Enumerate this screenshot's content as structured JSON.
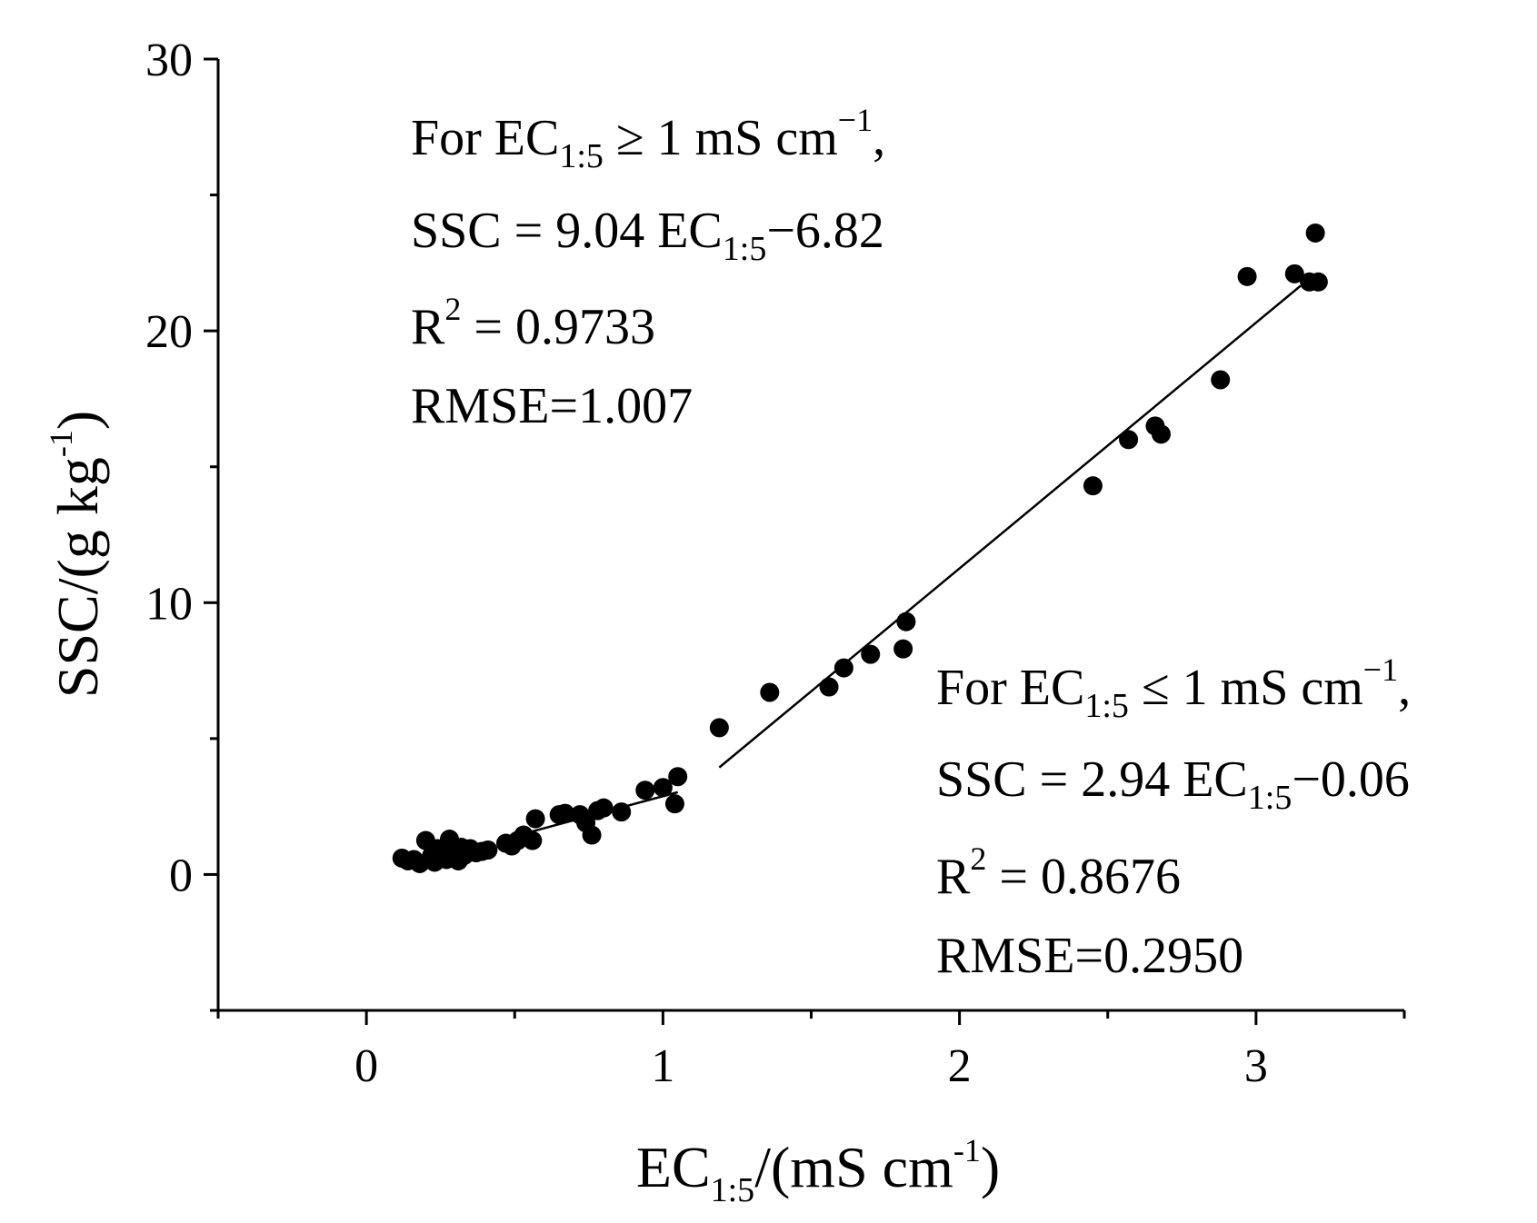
{
  "chart_data": {
    "type": "scatter",
    "xlabel": {
      "main": "EC",
      "sub": "1:5",
      "rest": "/(mS cm",
      "sup": "-1",
      "close": ")"
    },
    "ylabel": {
      "main": "SSC/(g kg",
      "sup": "-1",
      "close": ")"
    },
    "xlim": [
      -0.5,
      3.5
    ],
    "ylim": [
      -5,
      30
    ],
    "x_ticks": [
      0,
      1,
      2,
      3
    ],
    "x_tick_labels": [
      "0",
      "1",
      "2",
      "3"
    ],
    "y_ticks": [
      0,
      10,
      20,
      30
    ],
    "y_tick_labels": [
      "0",
      "10",
      "20",
      "30"
    ],
    "grid": false,
    "series": [
      {
        "name": "samples",
        "marker": "filled-circle",
        "color": "#000000",
        "points": [
          [
            0.12,
            0.6
          ],
          [
            0.14,
            0.5
          ],
          [
            0.16,
            0.55
          ],
          [
            0.18,
            0.4
          ],
          [
            0.2,
            1.25
          ],
          [
            0.22,
            0.7
          ],
          [
            0.23,
            0.45
          ],
          [
            0.24,
            0.95
          ],
          [
            0.25,
            0.6
          ],
          [
            0.26,
            0.9
          ],
          [
            0.27,
            0.55
          ],
          [
            0.28,
            1.3
          ],
          [
            0.29,
            0.75
          ],
          [
            0.3,
            0.85
          ],
          [
            0.31,
            0.5
          ],
          [
            0.32,
            1.0
          ],
          [
            0.33,
            0.7
          ],
          [
            0.35,
            0.95
          ],
          [
            0.37,
            0.8
          ],
          [
            0.39,
            0.85
          ],
          [
            0.41,
            0.9
          ],
          [
            0.47,
            1.15
          ],
          [
            0.49,
            1.05
          ],
          [
            0.51,
            1.25
          ],
          [
            0.53,
            1.45
          ],
          [
            0.56,
            1.25
          ],
          [
            0.57,
            2.05
          ],
          [
            0.65,
            2.2
          ],
          [
            0.67,
            2.25
          ],
          [
            0.72,
            2.2
          ],
          [
            0.74,
            1.9
          ],
          [
            0.76,
            1.45
          ],
          [
            0.78,
            2.35
          ],
          [
            0.8,
            2.45
          ],
          [
            0.86,
            2.3
          ],
          [
            0.94,
            3.1
          ],
          [
            1.0,
            3.2
          ],
          [
            1.04,
            2.6
          ],
          [
            1.05,
            3.6
          ],
          [
            1.19,
            5.4
          ],
          [
            1.36,
            6.7
          ],
          [
            1.56,
            6.9
          ],
          [
            1.61,
            7.6
          ],
          [
            1.7,
            8.1
          ],
          [
            1.81,
            8.3
          ],
          [
            1.82,
            9.3
          ],
          [
            2.45,
            14.3
          ],
          [
            2.57,
            16.0
          ],
          [
            2.66,
            16.5
          ],
          [
            2.68,
            16.2
          ],
          [
            2.88,
            18.2
          ],
          [
            2.97,
            22.0
          ],
          [
            3.13,
            22.1
          ],
          [
            3.18,
            21.8
          ],
          [
            3.2,
            23.6
          ],
          [
            3.21,
            21.8
          ]
        ]
      }
    ],
    "fits": [
      {
        "name": "fit-low",
        "x0": 0.45,
        "x1": 1.05,
        "slope": 2.94,
        "intercept": -0.06,
        "label": "For EC1:5 ≤ 1 mS cm−1"
      },
      {
        "name": "fit-high",
        "x0": 1.19,
        "x1": 3.15,
        "slope": 9.04,
        "intercept": -6.82,
        "label": "For EC1:5 ≥ 1 mS cm−1"
      }
    ],
    "annotations": {
      "high": {
        "line1": {
          "a": "For EC",
          "sub": "1:5",
          "b": " ≥ 1 mS cm",
          "sup": "−1",
          "c": ","
        },
        "line2": {
          "a": "SSC = 9.04 EC",
          "sub": "1:5",
          "b": "−6.82"
        },
        "line3": {
          "a": "R",
          "sup": "2",
          "b": " = 0.9733"
        },
        "line4": "RMSE=1.007"
      },
      "low": {
        "line1": {
          "a": "For EC",
          "sub": "1:5",
          "b": " ≤ 1 mS cm",
          "sup": "−1",
          "c": ","
        },
        "line2": {
          "a": "SSC = 2.94 EC",
          "sub": "1:5",
          "b": "−0.06"
        },
        "line3": {
          "a": "R",
          "sup": "2",
          "b": " = 0.8676"
        },
        "line4": "RMSE=0.2950"
      }
    }
  }
}
